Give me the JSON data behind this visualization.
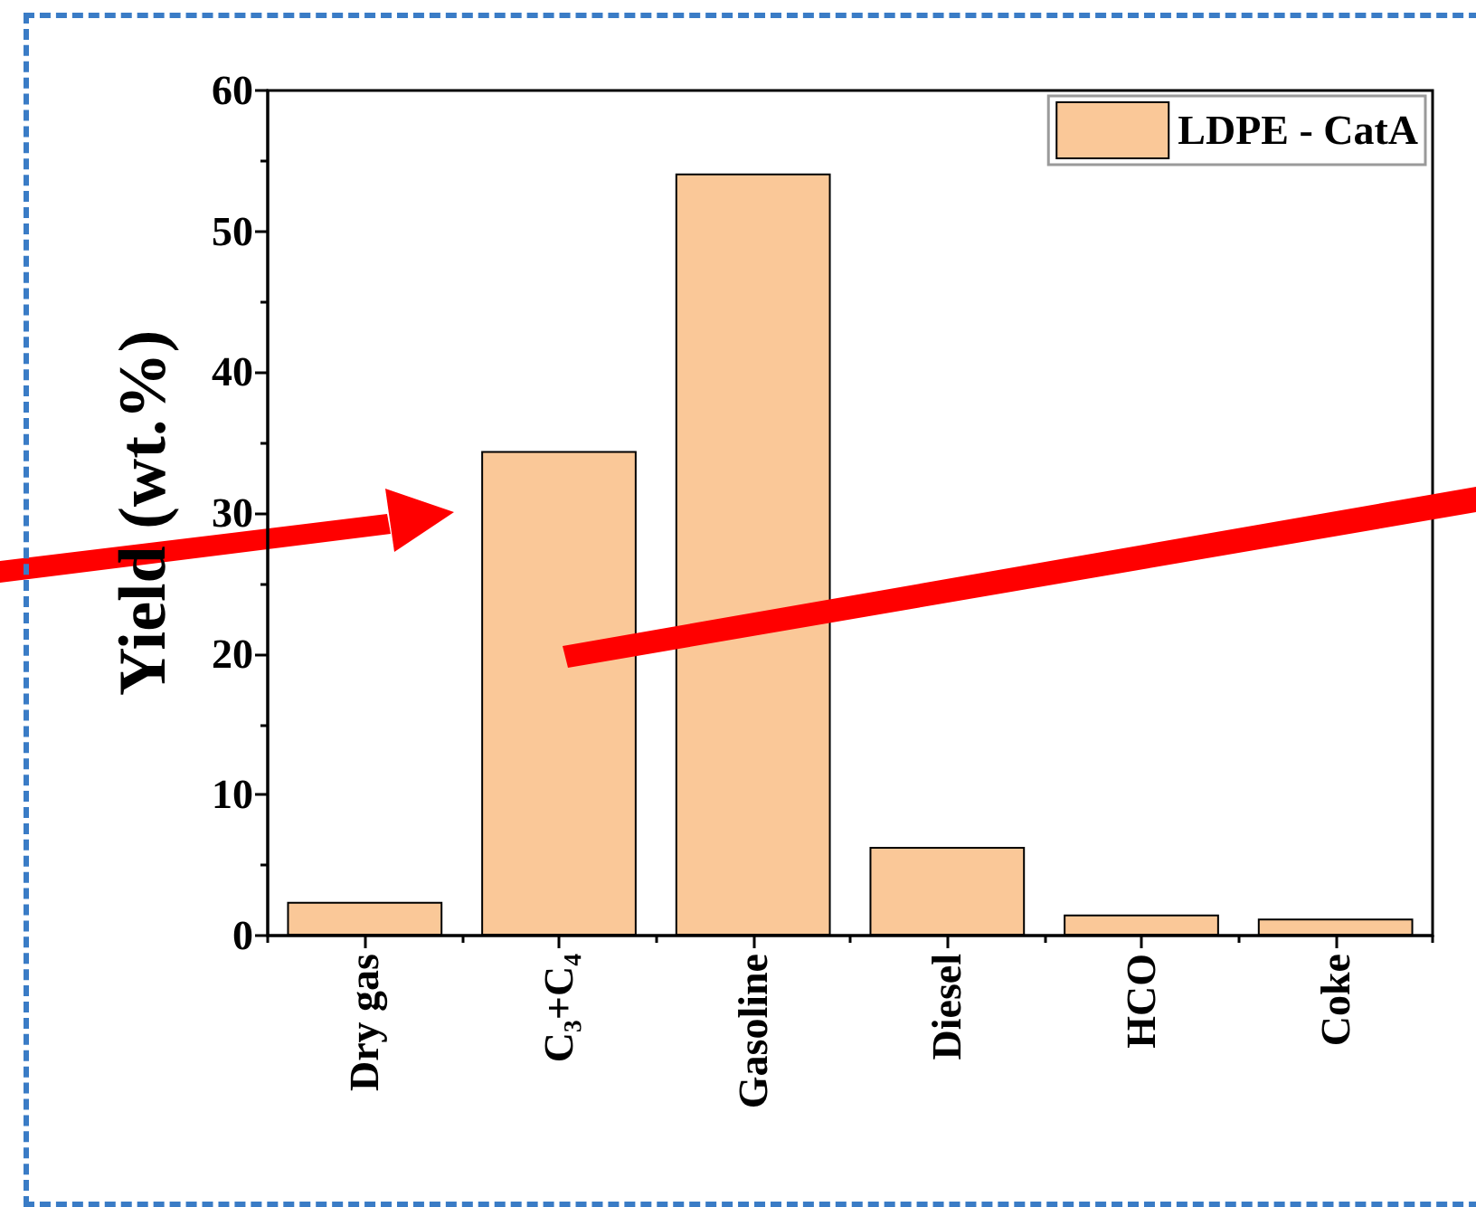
{
  "chart_data": {
    "type": "bar",
    "ylabel": "Yield (wt.%)",
    "categories": [
      "Dry gas",
      "C₃+C₄",
      "Gasoline",
      "Diesel",
      "HCO",
      "Coke"
    ],
    "series": [
      {
        "name": "LDPE - CatA",
        "color": "#fac898",
        "values": [
          2.4,
          34.4,
          54.1,
          6.3,
          1.5,
          1.2
        ]
      }
    ],
    "ylim": [
      0,
      60
    ],
    "yticks": [
      0,
      10,
      20,
      30,
      40,
      50,
      60
    ],
    "grid": false,
    "legend": "top right"
  }
}
